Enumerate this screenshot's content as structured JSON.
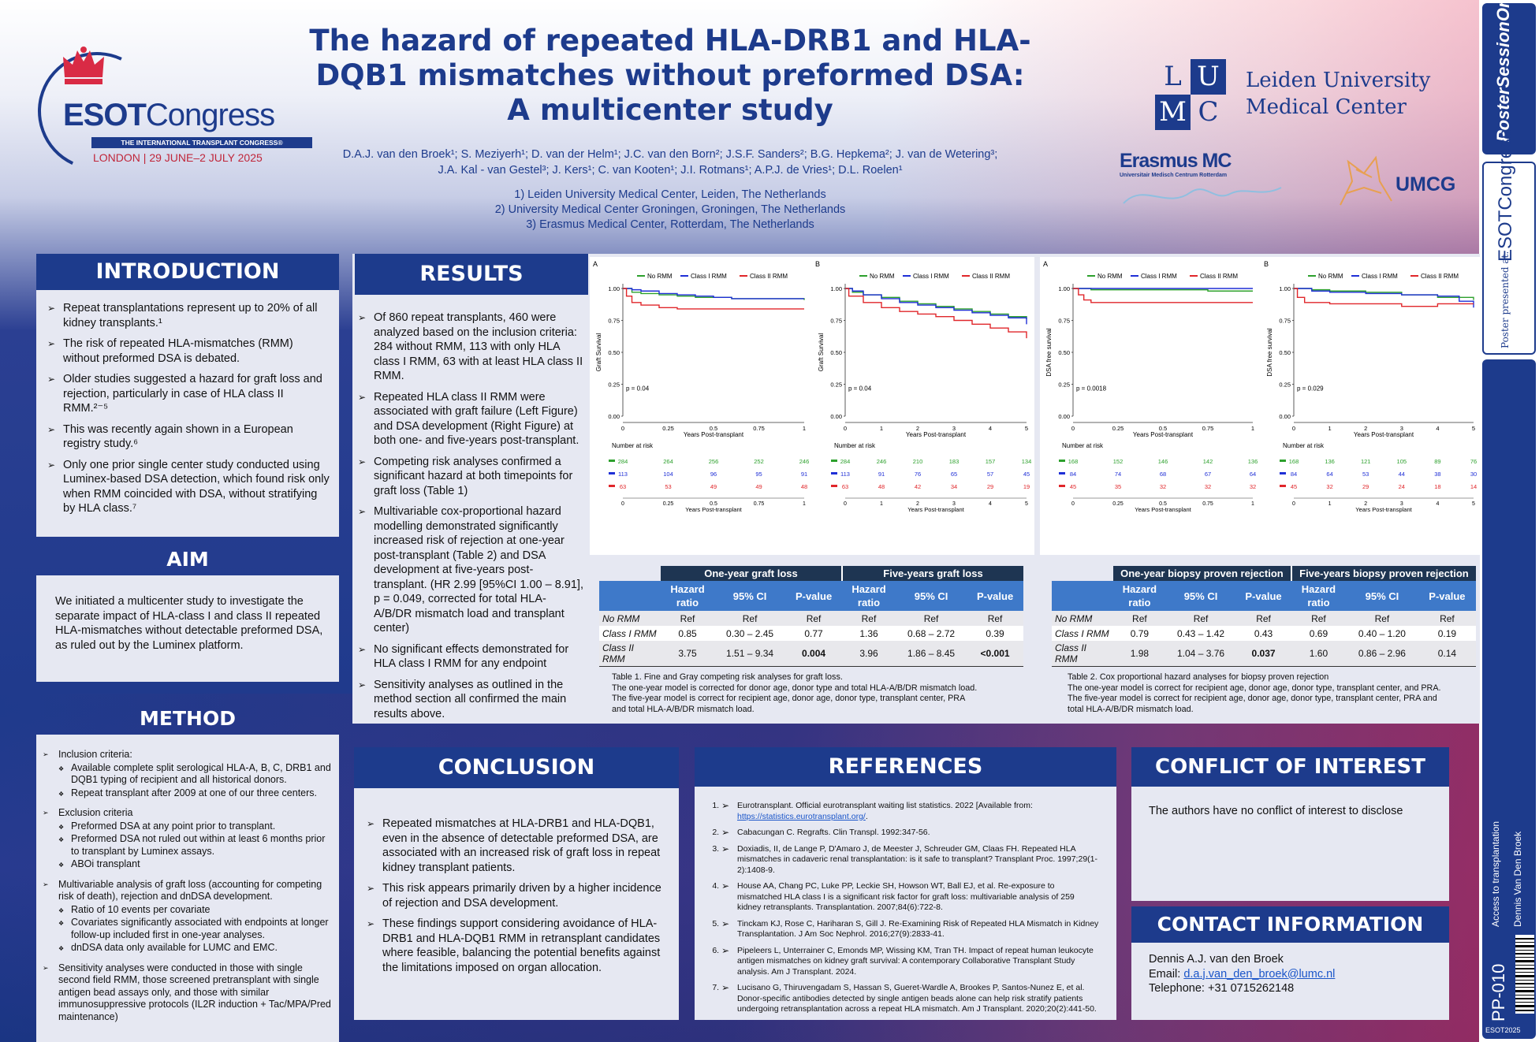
{
  "title": [
    "The hazard of repeated HLA-DRB1 and HLA-",
    "DQB1 mismatches without preformed DSA:",
    "A multicenter study"
  ],
  "authors": {
    "line1": "D.A.J. van den Broek¹; S. Meziyerh¹; D. van der Helm¹; J.C. van den Born²; J.S.F. Sanders²; B.G. Hepkema²; J. van de Wetering³;",
    "line2": "J.A. Kal - van Gestel³; J. Kers¹; C. van Kooten¹; J.I. Rotmans¹; A.P.J. de Vries¹; D.L. Roelen¹"
  },
  "affiliations": [
    "1) Leiden University Medical Center, Leiden, The Netherlands",
    "2) University Medical Center Groningen, Groningen, The Netherlands",
    "3) Erasmus Medical Center, Rotterdam, The Netherlands"
  ],
  "logos": {
    "esot_word_a": "ESOT",
    "esot_word_b": "Congress",
    "esot_tag": "THE INTERNATIONAL TRANSPLANT CONGRESS®",
    "esot_city": "LONDON | 29 JUNE–2 JULY 2025",
    "lumc_letters": [
      "L",
      "U",
      "M",
      "C"
    ],
    "lumc_name": [
      "Leiden University",
      "Medical Center"
    ],
    "erasmus_name": "Erasmus MC",
    "erasmus_sub": "Universitair Medisch Centrum Rotterdam",
    "umcg_name": "UMCG"
  },
  "sidebar": {
    "poster_session": "PosterSessionOnline",
    "poster_presented": "Poster presented at:",
    "esot_vertical": "ESOTCongress",
    "category": "Access to transplantation",
    "author": "Dennis Van Den Broek",
    "code": "PP-010",
    "footer": "ESOT2025"
  },
  "introduction": {
    "heading": "INTRODUCTION",
    "items": [
      "Repeat transplantations represent up to 20% of all kidney transplants.¹",
      "The risk of repeated HLA-mismatches (RMM) without preformed DSA is debated.",
      "Older studies suggested a hazard for graft loss and rejection, particularly in case of HLA class II RMM.²⁻⁵",
      "This was recently again shown in a European registry study.⁶",
      "Only one prior single center study conducted using Luminex-based DSA detection, which found risk only when RMM coincided with DSA, without stratifying by HLA class.⁷"
    ]
  },
  "aim": {
    "heading": "AIM",
    "text": "We initiated a multicenter study to investigate the separate impact of HLA-class I and class II repeated HLA-mismatches without detectable preformed DSA, as ruled out by the Luminex platform."
  },
  "method": {
    "heading": "METHOD",
    "items": [
      {
        "text": "Inclusion criteria:",
        "sub": [
          "Available complete split serological HLA-A, B, C, DRB1 and DQB1 typing of recipient and all historical donors.",
          "Repeat transplant after 2009 at one of our three centers."
        ]
      },
      {
        "text": "Exclusion criteria",
        "sub": [
          "Preformed DSA at any point prior to transplant.",
          "Preformed DSA not ruled out within at least 6 months prior to transplant by Luminex assays.",
          "ABOi transplant"
        ]
      },
      {
        "text": "Multivariable analysis of graft loss (accounting for competing risk of death), rejection and dnDSA development.",
        "sub": [
          "Ratio of 10 events per covariate",
          "Covariates significantly associated with endpoints at longer follow-up included first in one-year analyses.",
          "dnDSA data only available for LUMC and EMC."
        ]
      },
      {
        "text": "Sensitivity analyses were conducted in those with single second field RMM, those screened pretransplant with single antigen bead assays only, and those with similar immunosuppressive protocols (IL2R induction + Tac/MPA/Pred maintenance)",
        "sub": []
      }
    ]
  },
  "results": {
    "heading": "RESULTS",
    "items": [
      "Of 860 repeat transplants, 460 were analyzed based on the inclusion criteria: 284 without RMM, 113 with only HLA class I RMM, 63 with at least HLA class II RMM.",
      "Repeated HLA class II RMM were associated with graft failure (Left Figure) and DSA development (Right Figure) at both one- and five-years post-transplant.",
      "Competing risk analyses confirmed a significant hazard at both timepoints for graft loss (Table 1)",
      "Multivariable cox-proportional hazard modelling demonstrated significantly increased risk of rejection at one-year post-transplant (Table 2) and DSA development at five-years post-transplant. (HR 2.99 [95%CI 1.00 – 8.91], p = 0.049, corrected for total HLA-A/B/DR mismatch load and transplant center)",
      "No significant effects demonstrated for HLA class I RMM for any endpoint",
      "Sensitivity analyses as outlined in the method section all confirmed the main results above."
    ]
  },
  "chart_data": [
    {
      "type": "line",
      "panel": "A",
      "ylabel": "Graft Survival",
      "xlabel": "Years Post-transplant",
      "xlim": [
        0,
        1
      ],
      "ylim": [
        0,
        1
      ],
      "x_ticks": [
        "0",
        "0.25",
        "0.5",
        "0.75",
        "1"
      ],
      "y_ticks": [
        "0.00",
        "0.25",
        "0.50",
        "0.75",
        "1.00"
      ],
      "p_value": "p = 0.04",
      "legend": [
        "No RMM",
        "Class I RMM",
        "Class II RMM"
      ],
      "colors": [
        "#2ca02c",
        "#1f2fd6",
        "#e0262a"
      ],
      "series": [
        {
          "name": "No RMM",
          "x": [
            0,
            0.05,
            0.1,
            0.2,
            0.3,
            0.4,
            0.5,
            0.6,
            0.75,
            0.9,
            1
          ],
          "y": [
            1,
            0.97,
            0.96,
            0.95,
            0.94,
            0.93,
            0.93,
            0.92,
            0.92,
            0.92,
            0.91
          ]
        },
        {
          "name": "Class I RMM",
          "x": [
            0,
            0.05,
            0.1,
            0.2,
            0.3,
            0.4,
            0.5,
            0.6,
            0.75,
            0.9,
            1
          ],
          "y": [
            1,
            0.99,
            0.98,
            0.96,
            0.95,
            0.94,
            0.93,
            0.92,
            0.92,
            0.92,
            0.92
          ]
        },
        {
          "name": "Class II RMM",
          "x": [
            0,
            0.02,
            0.05,
            0.1,
            0.2,
            0.3,
            0.5,
            0.6,
            0.75,
            0.9,
            1
          ],
          "y": [
            1,
            0.94,
            0.89,
            0.87,
            0.85,
            0.84,
            0.84,
            0.84,
            0.84,
            0.84,
            0.84
          ]
        }
      ],
      "risk_table": {
        "title": "Number at risk",
        "x_ticks": [
          "0",
          "0.25",
          "0.5",
          "0.75",
          "1"
        ],
        "xlabel": "Years Post-transplant",
        "rows": [
          [
            "284",
            "264",
            "256",
            "252",
            "246"
          ],
          [
            "113",
            "104",
            "96",
            "95",
            "91"
          ],
          [
            "63",
            "53",
            "49",
            "49",
            "48"
          ]
        ]
      }
    },
    {
      "type": "line",
      "panel": "B",
      "ylabel": "Graft Survival",
      "xlabel": "Years Post-transplant",
      "xlim": [
        0,
        5
      ],
      "ylim": [
        0,
        1
      ],
      "x_ticks": [
        "0",
        "1",
        "2",
        "3",
        "4",
        "5"
      ],
      "y_ticks": [
        "0.00",
        "0.25",
        "0.50",
        "0.75",
        "1.00"
      ],
      "p_value": "p = 0.04",
      "legend": [
        "No RMM",
        "Class I RMM",
        "Class II RMM"
      ],
      "colors": [
        "#2ca02c",
        "#1f2fd6",
        "#e0262a"
      ],
      "series": [
        {
          "name": "No RMM",
          "x": [
            0,
            0.2,
            0.5,
            1,
            1.5,
            2,
            2.5,
            3,
            3.5,
            4,
            4.5,
            5
          ],
          "y": [
            1,
            0.97,
            0.95,
            0.93,
            0.9,
            0.88,
            0.86,
            0.84,
            0.82,
            0.8,
            0.78,
            0.76
          ]
        },
        {
          "name": "Class I RMM",
          "x": [
            0,
            0.2,
            0.5,
            1,
            1.5,
            2,
            2.5,
            3,
            3.5,
            4,
            4.5,
            5
          ],
          "y": [
            1,
            0.98,
            0.95,
            0.92,
            0.89,
            0.87,
            0.85,
            0.83,
            0.81,
            0.79,
            0.77,
            0.72
          ]
        },
        {
          "name": "Class II RMM",
          "x": [
            0,
            0.1,
            0.5,
            1,
            1.5,
            2,
            2.5,
            3,
            3.5,
            4,
            4.5,
            5
          ],
          "y": [
            1,
            0.94,
            0.89,
            0.85,
            0.82,
            0.8,
            0.78,
            0.75,
            0.72,
            0.69,
            0.66,
            0.61
          ]
        }
      ],
      "risk_table": {
        "title": "Number at risk",
        "x_ticks": [
          "0",
          "1",
          "2",
          "3",
          "4",
          "5"
        ],
        "xlabel": "Years Post-transplant",
        "rows": [
          [
            "284",
            "246",
            "210",
            "183",
            "157",
            "134"
          ],
          [
            "113",
            "91",
            "76",
            "65",
            "57",
            "45"
          ],
          [
            "63",
            "48",
            "42",
            "34",
            "29",
            "19"
          ]
        ]
      }
    },
    {
      "type": "line",
      "panel": "A",
      "ylabel": "DSA free survival",
      "xlabel": "Years Post-transplant",
      "xlim": [
        0,
        1
      ],
      "ylim": [
        0,
        1
      ],
      "x_ticks": [
        "0",
        "0.25",
        "0.5",
        "0.75",
        "1"
      ],
      "y_ticks": [
        "0.00",
        "0.25",
        "0.50",
        "0.75",
        "1.00"
      ],
      "p_value": "p = 0.0018",
      "legend": [
        "No RMM",
        "Class I RMM",
        "Class II RMM"
      ],
      "colors": [
        "#2ca02c",
        "#1f2fd6",
        "#e0262a"
      ],
      "series": [
        {
          "name": "No RMM",
          "x": [
            0,
            0.1,
            0.25,
            0.5,
            0.75,
            1
          ],
          "y": [
            1,
            0.99,
            0.99,
            0.99,
            0.98,
            0.98
          ]
        },
        {
          "name": "Class I RMM",
          "x": [
            0,
            0.1,
            0.25,
            0.5,
            0.75,
            1
          ],
          "y": [
            1,
            1,
            1,
            1,
            1,
            1
          ]
        },
        {
          "name": "Class II RMM",
          "x": [
            0,
            0.03,
            0.06,
            0.1,
            0.25,
            0.5,
            0.75,
            1
          ],
          "y": [
            1,
            0.95,
            0.91,
            0.89,
            0.89,
            0.89,
            0.89,
            0.89
          ]
        }
      ],
      "risk_table": {
        "title": "Number at risk",
        "x_ticks": [
          "0",
          "0.25",
          "0.5",
          "0.75",
          "1"
        ],
        "xlabel": "Years Post-transplant",
        "rows": [
          [
            "168",
            "152",
            "146",
            "142",
            "136"
          ],
          [
            "84",
            "74",
            "68",
            "67",
            "64"
          ],
          [
            "45",
            "35",
            "32",
            "32",
            "32"
          ]
        ]
      }
    },
    {
      "type": "line",
      "panel": "B",
      "ylabel": "DSA free survival",
      "xlabel": "Years Post-transplant",
      "xlim": [
        0,
        5
      ],
      "ylim": [
        0,
        1
      ],
      "x_ticks": [
        "0",
        "1",
        "2",
        "3",
        "4",
        "5"
      ],
      "y_ticks": [
        "0.00",
        "0.25",
        "0.50",
        "0.75",
        "1.00"
      ],
      "p_value": "p = 0.029",
      "legend": [
        "No RMM",
        "Class I RMM",
        "Class II RMM"
      ],
      "colors": [
        "#2ca02c",
        "#1f2fd6",
        "#e0262a"
      ],
      "series": [
        {
          "name": "No RMM",
          "x": [
            0,
            0.5,
            1,
            2,
            3,
            4,
            5
          ],
          "y": [
            1,
            0.99,
            0.98,
            0.97,
            0.95,
            0.93,
            0.91
          ]
        },
        {
          "name": "Class I RMM",
          "x": [
            0,
            0.5,
            1,
            2,
            3,
            4,
            4.6,
            5
          ],
          "y": [
            1,
            0.98,
            0.97,
            0.96,
            0.95,
            0.94,
            0.9,
            0.85
          ]
        },
        {
          "name": "Class II RMM",
          "x": [
            0,
            0.1,
            0.3,
            1,
            2,
            3,
            4,
            5
          ],
          "y": [
            1,
            0.93,
            0.89,
            0.88,
            0.88,
            0.86,
            0.88,
            0.88
          ]
        }
      ],
      "risk_table": {
        "title": "Number at risk",
        "x_ticks": [
          "0",
          "1",
          "2",
          "3",
          "4",
          "5"
        ],
        "xlabel": "Years Post-transplant",
        "rows": [
          [
            "168",
            "136",
            "121",
            "105",
            "89",
            "76"
          ],
          [
            "84",
            "64",
            "53",
            "44",
            "38",
            "30"
          ],
          [
            "45",
            "32",
            "29",
            "24",
            "18",
            "14"
          ]
        ]
      }
    },
    {
      "type": "table",
      "title": "Table 1",
      "groups": [
        "One-year graft loss",
        "Five-years graft loss"
      ],
      "columns": [
        "Hazard ratio",
        "95% CI",
        "P-value",
        "Hazard ratio",
        "95% CI",
        "P-value"
      ],
      "rows": [
        [
          "No RMM",
          "Ref",
          "Ref",
          "Ref",
          "Ref",
          "Ref",
          "Ref"
        ],
        [
          "Class I RMM",
          "0.85",
          "0.30 – 2.45",
          "0.77",
          "1.36",
          "0.68 – 2.72",
          "0.39"
        ],
        [
          "Class II RMM",
          "3.75",
          "1.51 – 9.34",
          "0.004",
          "3.96",
          "1.86 – 8.45",
          "<0.001"
        ]
      ]
    },
    {
      "type": "table",
      "title": "Table 2",
      "groups": [
        "One-year biopsy proven rejection",
        "Five-years biopsy proven rejection"
      ],
      "columns": [
        "Hazard ratio",
        "95% CI",
        "P-value",
        "Hazard ratio",
        "95% CI",
        "P-value"
      ],
      "rows": [
        [
          "No RMM",
          "Ref",
          "Ref",
          "Ref",
          "Ref",
          "Ref",
          "Ref"
        ],
        [
          "Class I RMM",
          "0.79",
          "0.43 – 1.42",
          "0.43",
          "0.69",
          "0.40 – 1.20",
          "0.19"
        ],
        [
          "Class II RMM",
          "1.98",
          "1.04 – 3.76",
          "0.037",
          "1.60",
          "0.86 – 2.96",
          "0.14"
        ]
      ]
    }
  ],
  "table_headers": {
    "hr": [
      "Hazard",
      "ratio"
    ],
    "ci": "95% CI",
    "p": "P-value"
  },
  "captions": {
    "table1": [
      "Table 1. Fine and Gray competing risk analyses for graft loss.",
      "The one-year model is corrected for donor age, donor type and total HLA-A/B/DR mismatch load.",
      "The five-year model is correct for recipient age, donor age, donor type, transplant center, PRA",
      "and total HLA-A/B/DR mismatch load."
    ],
    "table2": [
      "Table 2. Cox proportional hazard analyses for biopsy proven rejection",
      "The one-year model is correct for recipient age, donor age, donor type, transplant center, and PRA.",
      "The five-year model is correct for recipient age, donor age, donor type, transplant center, PRA and",
      "total HLA-A/B/DR mismatch load."
    ]
  },
  "conclusion": {
    "heading": "CONCLUSION",
    "items": [
      "Repeated mismatches at HLA-DRB1 and HLA-DQB1, even in the absence of detectable preformed DSA, are associated with an increased risk of graft loss in repeat kidney transplant patients.",
      "This risk appears primarily driven by a higher incidence of rejection and DSA development.",
      "These findings support considering avoidance of HLA-DRB1 and HLA-DQB1 RMM in retransplant candidates where feasible, balancing the potential benefits against the limitations imposed on organ allocation."
    ]
  },
  "references": {
    "heading": "REFERENCES",
    "items": [
      "Eurotransplant. Official eurotransplant waiting list statistics. 2022 [Available from:",
      "Cabacungan C. Regrafts. Clin Transpl. 1992:347-56.",
      "Doxiadis, II, de Lange P, D'Amaro J, de Meester J, Schreuder GM, Claas FH. Repeated HLA mismatches in cadaveric renal transplantation: is it safe to transplant? Transplant Proc. 1997;29(1-2):1408-9.",
      "House AA, Chang PC, Luke PP, Leckie SH, Howson WT, Ball EJ, et al. Re-exposure to mismatched HLA class I is a significant risk factor for graft loss: multivariable analysis of 259 kidney retransplants. Transplantation. 2007;84(6):722-8.",
      "Tinckam KJ, Rose C, Hariharan S, Gill J. Re-Examining Risk of Repeated HLA Mismatch in Kidney Transplantation. J Am Soc Nephrol. 2016;27(9):2833-41.",
      "Pipeleers L, Unterrainer C, Emonds MP, Wissing KM, Tran TH. Impact of repeat human leukocyte antigen mismatches on kidney graft survival: A contemporary Collaborative Transplant Study analysis. Am J Transplant. 2024.",
      "Lucisano G, Thiruvengadam S, Hassan S, Gueret-Wardle A, Brookes P, Santos-Nunez E, et al. Donor-specific antibodies detected by single antigen beads alone can help risk stratify patients undergoing retransplantation across a repeat HLA mismatch. Am J Transplant. 2020;20(2):441-50."
    ],
    "ref1_link": "https://statistics.eurotransplant.org/",
    "ref1_tail": "."
  },
  "conflict": {
    "heading": "CONFLICT OF INTEREST",
    "text": "The authors have no conflict of interest to disclose"
  },
  "contact": {
    "heading": "CONTACT INFORMATION",
    "name": "Dennis A.J. van den Broek",
    "email_label": "Email: ",
    "email": "d.a.j.van_den_broek@lumc.nl",
    "phone": "Telephone: +31 0715262148"
  }
}
